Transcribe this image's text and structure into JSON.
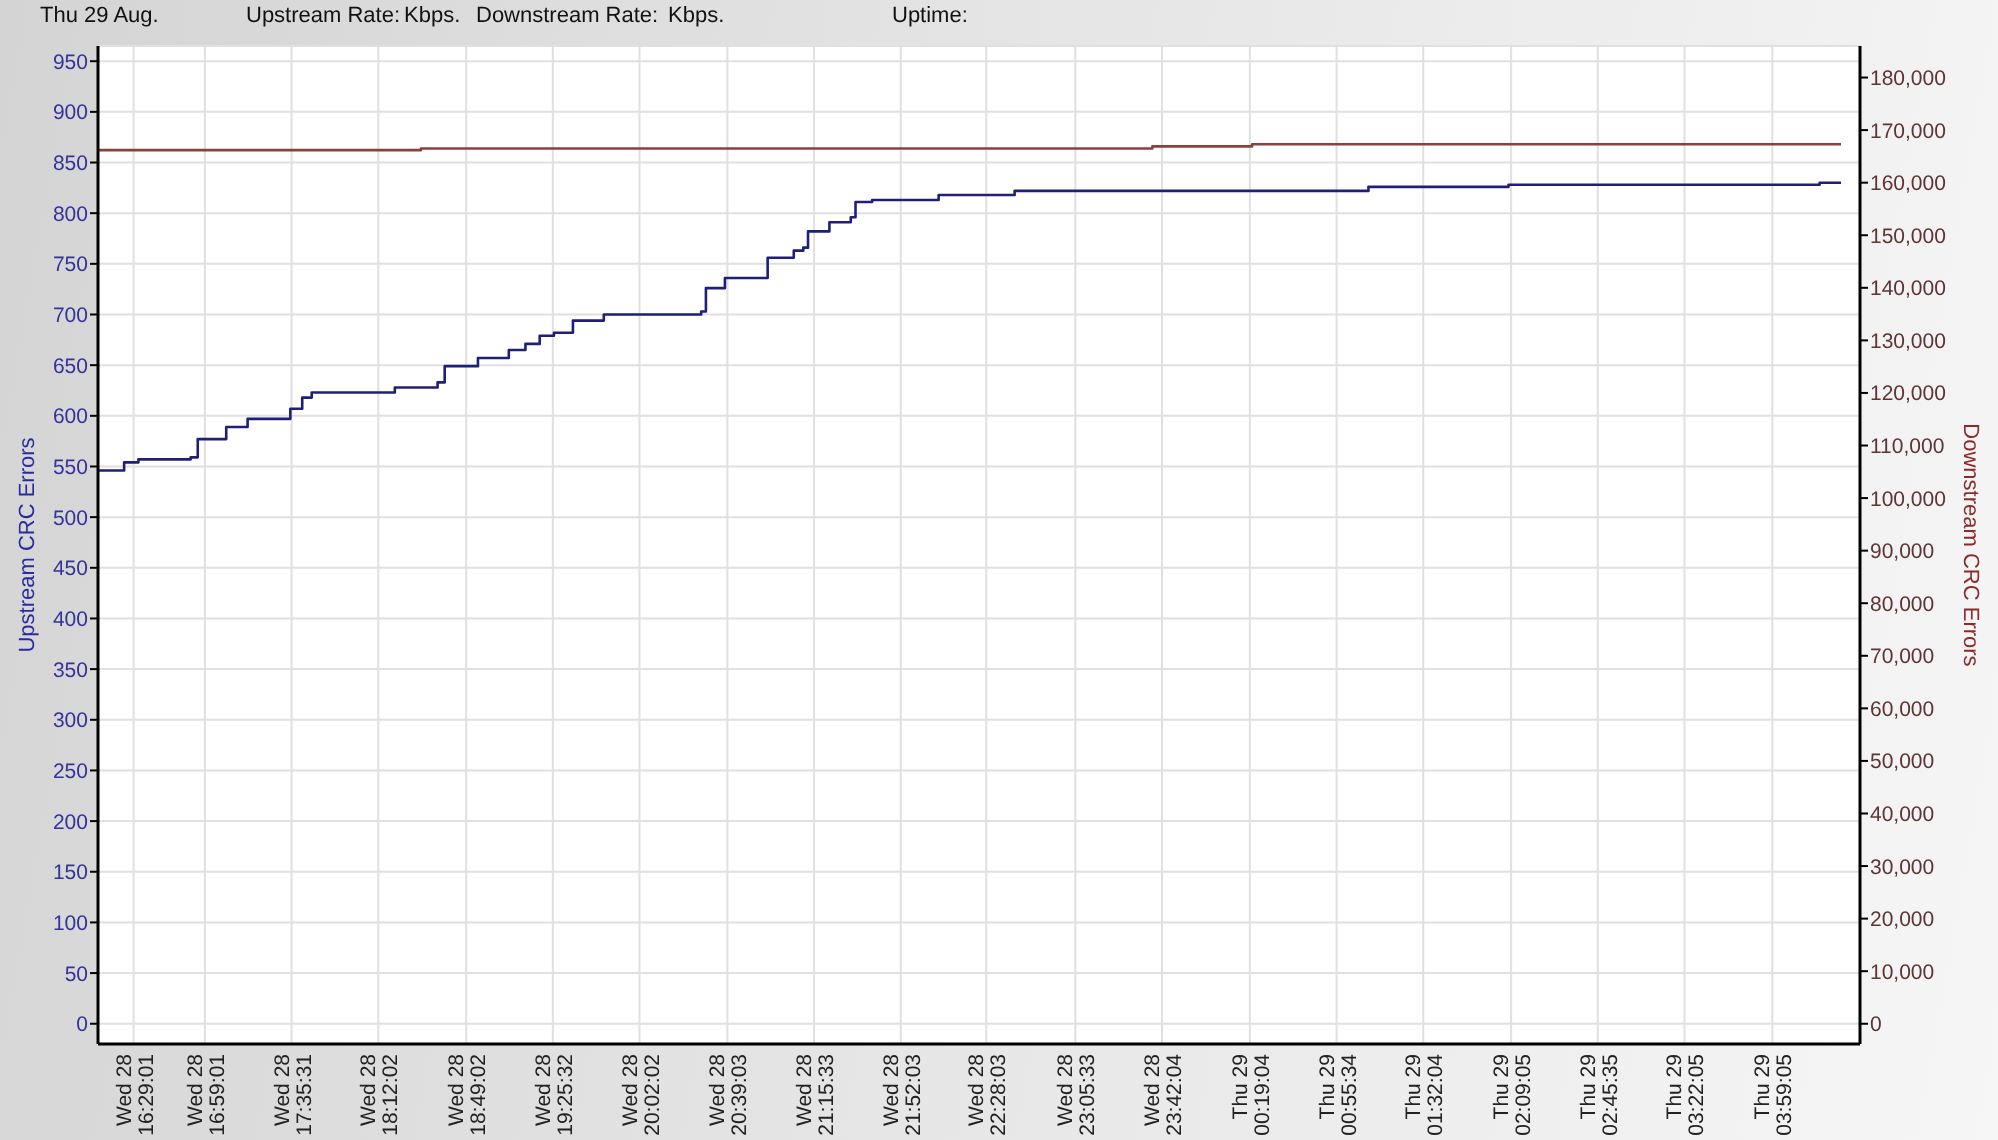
{
  "chart_data": {
    "type": "step",
    "annotations": [
      "Thu 29 Aug.",
      "Upstream Rate:",
      "Kbps.",
      "Downstream Rate:",
      "Kbps.",
      "Uptime:"
    ],
    "ylabel": "Upstream CRC Errors",
    "y2label": "Downstream CRC Errors",
    "xlim": [
      "--08-28T16:14",
      "--08-29T04:36"
    ],
    "xticks": [
      {
        "value": "--08-28T16:29:01",
        "label": "Wed 28 16:29:01"
      },
      {
        "value": "--08-28T16:59:01",
        "label": "Wed 28 16:59:01"
      },
      {
        "value": "--08-28T17:35:31",
        "label": "Wed 28 17:35:31"
      },
      {
        "value": "--08-28T18:12:02",
        "label": "Wed 28 18:12:02"
      },
      {
        "value": "--08-28T18:49:02",
        "label": "Wed 28 18:49:02"
      },
      {
        "value": "--08-28T19:25:32",
        "label": "Wed 28 19:25:32"
      },
      {
        "value": "--08-28T20:02:02",
        "label": "Wed 28 20:02:02"
      },
      {
        "value": "--08-28T20:39:03",
        "label": "Wed 28 20:39:03"
      },
      {
        "value": "--08-28T21:15:33",
        "label": "Wed 28 21:15:33"
      },
      {
        "value": "--08-28T21:52:03",
        "label": "Wed 28 21:52:03"
      },
      {
        "value": "--08-28T22:28:03",
        "label": "Wed 28 22:28:03"
      },
      {
        "value": "--08-28T23:05:33",
        "label": "Wed 28 23:05:33"
      },
      {
        "value": "--08-28T23:42:04",
        "label": "Wed 28 23:42:04"
      },
      {
        "value": "--08-29T00:19:04",
        "label": "Thu 29 00:19:04"
      },
      {
        "value": "--08-29T00:55:34",
        "label": "Thu 29 00:55:34"
      },
      {
        "value": "--08-29T01:32:04",
        "label": "Thu 29 01:32:04"
      },
      {
        "value": "--08-29T02:09:05",
        "label": "Thu 29 02:09:05"
      },
      {
        "value": "--08-29T02:45:35",
        "label": "Thu 29 02:45:35"
      },
      {
        "value": "--08-29T03:22:05",
        "label": "Thu 29 03:22:05"
      },
      {
        "value": "--08-29T03:59:05",
        "label": "Thu 29 03:59:05"
      }
    ],
    "ylim": [
      -20,
      965
    ],
    "yticks": [
      0,
      50,
      100,
      150,
      200,
      250,
      300,
      350,
      400,
      450,
      500,
      550,
      600,
      650,
      700,
      750,
      800,
      850,
      900,
      950
    ],
    "y2lim": [
      -3850,
      186000
    ],
    "y2ticks": [
      0,
      {
        "value": 10000,
        "label": "10,000"
      },
      {
        "value": 20000,
        "label": "20,000"
      },
      {
        "value": 30000,
        "label": "30,000"
      },
      {
        "value": 40000,
        "label": "40,000"
      },
      {
        "value": 50000,
        "label": "50,000"
      },
      {
        "value": 60000,
        "label": "60,000"
      },
      {
        "value": 70000,
        "label": "70,000"
      },
      {
        "value": 80000,
        "label": "80,000"
      },
      {
        "value": 90000,
        "label": "90,000"
      },
      {
        "value": 100000,
        "label": "100,000"
      },
      {
        "value": 110000,
        "label": "110,000"
      },
      {
        "value": 120000,
        "label": "120,000"
      },
      {
        "value": 130000,
        "label": "130,000"
      },
      {
        "value": 140000,
        "label": "140,000"
      },
      {
        "value": 150000,
        "label": "150,000"
      },
      {
        "value": 160000,
        "label": "160,000"
      },
      {
        "value": 170000,
        "label": "170,000"
      },
      {
        "value": 180000,
        "label": "180,000"
      }
    ],
    "grid": true,
    "series": [
      {
        "color": "#1f1f7a",
        "x": [
          "--08-28T16:14",
          "--08-28T16:25",
          "--08-28T16:31",
          "--08-28T16:53",
          "--08-28T16:56",
          "--08-28T17:08",
          "--08-28T17:17",
          "--08-28T17:35",
          "--08-28T17:40",
          "--08-28T17:44",
          "--08-28T18:19",
          "--08-28T18:37",
          "--08-28T18:40",
          "--08-28T18:54",
          "--08-28T19:07",
          "--08-28T19:14",
          "--08-28T19:20",
          "--08-28T19:26",
          "--08-28T19:34",
          "--08-28T19:47",
          "--08-28T20:28",
          "--08-28T20:30",
          "--08-28T20:38",
          "--08-28T20:56",
          "--08-28T21:07",
          "--08-28T21:11",
          "--08-28T21:13",
          "--08-28T21:22",
          "--08-28T21:31",
          "--08-28T21:33",
          "--08-28T21:40",
          "--08-28T22:08",
          "--08-28T22:40",
          "--08-29T01:09",
          "--08-29T02:08",
          "--08-29T04:19",
          "--08-29T04:28"
        ],
        "values": [
          546,
          554,
          557,
          559,
          577,
          589,
          597,
          607,
          618,
          623,
          628,
          633,
          649,
          657,
          665,
          671,
          679,
          682,
          694,
          700,
          703,
          726,
          736,
          756,
          763,
          766,
          782,
          791,
          796,
          811,
          813,
          818,
          822,
          826,
          828,
          830,
          830
        ]
      },
      {
        "color": "#8b4040",
        "axis": "y2",
        "x": [
          "--08-28T16:14",
          "--08-28T18:30",
          "--08-28T23:38",
          "--08-29T00:20",
          "--08-29T04:28"
        ],
        "values": [
          166200,
          166500,
          166900,
          167300,
          167300
        ]
      }
    ]
  }
}
